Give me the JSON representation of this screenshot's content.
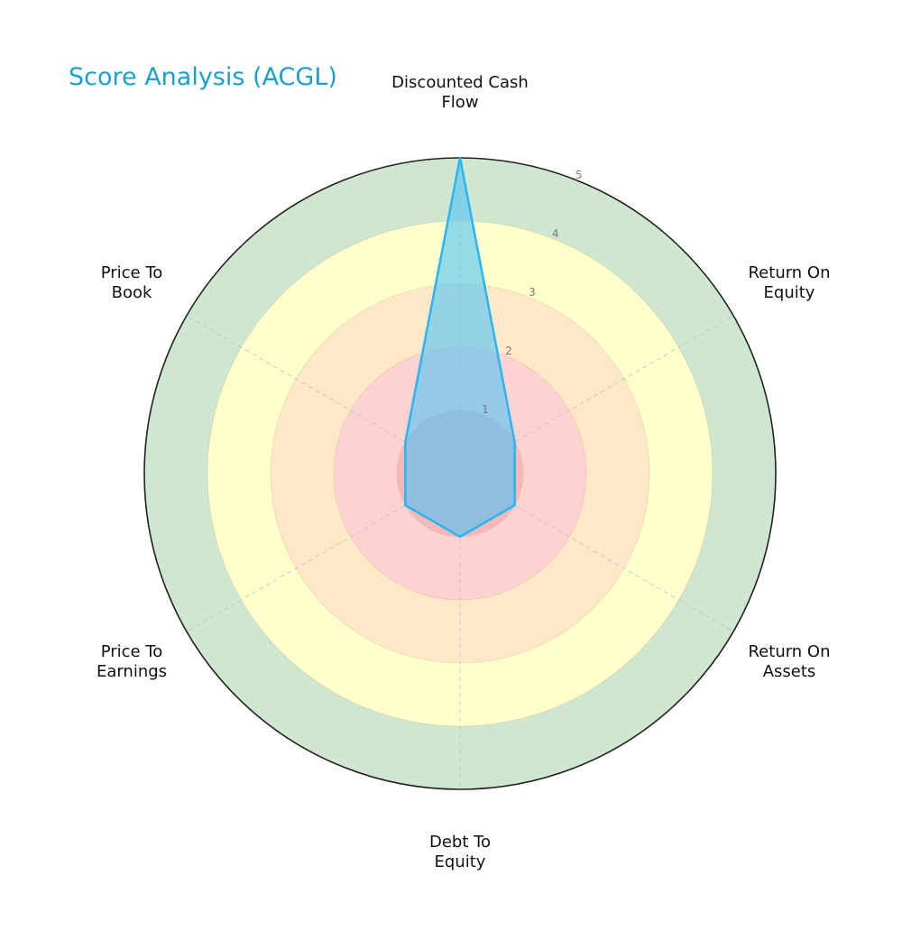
{
  "title": "Score Analysis (ACGL)",
  "colors": {
    "title": "#1a9fd0",
    "series_line": "#29b6f0",
    "series_fill": "#4fc3f7",
    "band_1": "#f5b7b7",
    "band_2": "#ffd2d2",
    "band_3": "#ffe8c8",
    "band_4": "#ffffcc",
    "band_5": "#cfe6cf"
  },
  "chart_data": {
    "type": "radar",
    "title": "Score Analysis (ACGL)",
    "categories": [
      "Discounted Cash\nFlow",
      "Return On\nEquity",
      "Return On\nAssets",
      "Debt To\nEquity",
      "Price To\nEarnings",
      "Price To\nBook"
    ],
    "series": [
      {
        "name": "ACGL",
        "values": [
          5,
          1,
          1,
          1,
          1,
          1
        ]
      }
    ],
    "radial_ticks": [
      "1",
      "2",
      "3",
      "4",
      "5"
    ],
    "rlim": [
      0,
      5
    ],
    "grid": true,
    "legend": false
  }
}
